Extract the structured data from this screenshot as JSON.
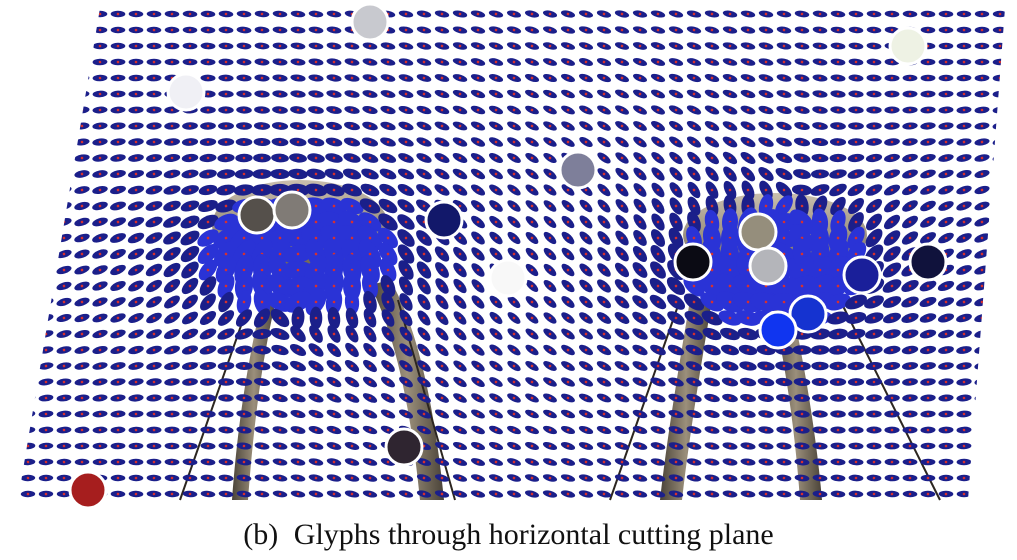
{
  "figure": {
    "caption_label": "(b)",
    "caption_text": "Glyphs through horizontal cutting plane",
    "colors": {
      "background": "#ffffff",
      "glyph": "#2a33d6",
      "glyph_dark": "#1b1f8a",
      "glyph_core": "#d8302e",
      "structure": "#8a7c66",
      "marker_ring": "#ffffff"
    },
    "markers": [
      {
        "name": "marker-light-gray-top",
        "color": "#c8c9cf"
      },
      {
        "name": "marker-pale-top-right",
        "color": "#eef2e4"
      },
      {
        "name": "marker-pale-top-left",
        "color": "#f0f0f5"
      },
      {
        "name": "marker-slate-center",
        "color": "#7e7f9a"
      },
      {
        "name": "marker-dark-gray-left",
        "color": "#55504b"
      },
      {
        "name": "marker-gray-left",
        "color": "#807b76"
      },
      {
        "name": "marker-navy-center",
        "color": "#12186a"
      },
      {
        "name": "marker-white-center",
        "color": "#f8f8f8"
      },
      {
        "name": "marker-black-right",
        "color": "#0b0b14"
      },
      {
        "name": "marker-khaki-right",
        "color": "#958e7c"
      },
      {
        "name": "marker-silver-right",
        "color": "#b4b5ba"
      },
      {
        "name": "marker-indigo-right",
        "color": "#1a1f9a"
      },
      {
        "name": "marker-navy-far-right",
        "color": "#10123c"
      },
      {
        "name": "marker-blue-right",
        "color": "#1533d0"
      },
      {
        "name": "marker-bright-blue-right",
        "color": "#1035f0"
      },
      {
        "name": "marker-dark-plum-bottom",
        "color": "#2f2530"
      },
      {
        "name": "marker-red-bottom-left",
        "color": "#a61e1e"
      }
    ]
  }
}
